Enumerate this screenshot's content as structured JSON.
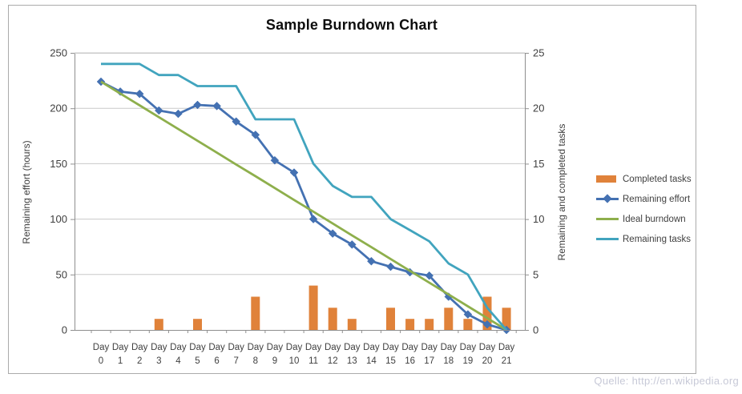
{
  "title": "Sample Burndown Chart",
  "watermark": "Quelle: http://en.wikipedia.org",
  "colors": {
    "background": "#FFFFFF",
    "border": "#ABABAB",
    "gridline": "#C9C9C9",
    "axis_line": "#8F8F8F",
    "text": "#3F3F3F",
    "title_text": "#0D0D0D",
    "watermark_text": "#C7C9D7"
  },
  "chart_data": {
    "type": "combo",
    "title": "Sample Burndown Chart",
    "categories": [
      "Day 0",
      "Day 1",
      "Day 2",
      "Day 3",
      "Day 4",
      "Day 5",
      "Day 6",
      "Day 7",
      "Day 8",
      "Day 9",
      "Day 10",
      "Day 11",
      "Day 12",
      "Day 13",
      "Day 14",
      "Day 15",
      "Day 16",
      "Day 17",
      "Day 18",
      "Day 19",
      "Day 20",
      "Day 21"
    ],
    "series": [
      {
        "name": "Completed tasks",
        "chart_type": "bar",
        "axis": "right",
        "color": "#E0823A",
        "marker": "none",
        "values": [
          0,
          0,
          0,
          1,
          0,
          1,
          0,
          0,
          3,
          0,
          0,
          4,
          2,
          1,
          0,
          2,
          1,
          1,
          2,
          1,
          3,
          2
        ]
      },
      {
        "name": "Remaining effort",
        "chart_type": "line",
        "axis": "left",
        "color": "#4471B2",
        "marker": "diamond",
        "values": [
          224,
          215,
          213,
          198,
          195,
          203,
          202,
          188,
          176,
          153,
          142,
          100,
          87,
          77,
          62,
          57,
          52,
          49,
          30,
          14,
          5,
          0
        ]
      },
      {
        "name": "Ideal burndown",
        "chart_type": "line",
        "axis": "left",
        "color": "#8EAF4C",
        "marker": "none",
        "values": [
          224,
          213.3,
          202.7,
          192,
          181.3,
          170.7,
          160,
          149.3,
          138.7,
          128,
          117.3,
          106.7,
          96,
          85.3,
          74.7,
          64,
          53.3,
          42.7,
          32,
          21.3,
          10.7,
          0
        ]
      },
      {
        "name": "Remaining tasks",
        "chart_type": "line",
        "axis": "right",
        "color": "#41A4BE",
        "marker": "none",
        "values": [
          24,
          24,
          24,
          23,
          23,
          22,
          22,
          22,
          19,
          19,
          19,
          15,
          13,
          12,
          12,
          10,
          9,
          8,
          6,
          5,
          2,
          0
        ]
      }
    ],
    "left_axis": {
      "label": "Remaining effort (hours)",
      "min": 0,
      "max": 250,
      "step": 50,
      "ticks": [
        0,
        50,
        100,
        150,
        200,
        250
      ]
    },
    "right_axis": {
      "label": "Remaining and completed tasks",
      "min": 0,
      "max": 25,
      "step": 5,
      "ticks": [
        0,
        5,
        10,
        15,
        20,
        25
      ]
    },
    "grid": true,
    "legend_position": "right"
  }
}
